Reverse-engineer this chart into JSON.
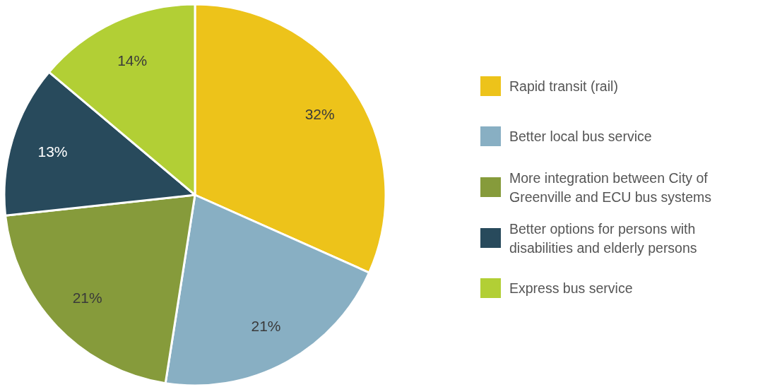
{
  "chart_data": {
    "type": "pie",
    "categories": [
      "Rapid transit (rail)",
      "Better local bus service",
      "More integration between City of Greenville and ECU bus systems",
      "Better options for persons with disabilities and elderly persons",
      "Express bus service"
    ],
    "values": [
      32,
      21,
      21,
      13,
      14
    ],
    "value_labels": [
      "32%",
      "21%",
      "21%",
      "13%",
      "14%"
    ],
    "colors": [
      "#edc31a",
      "#88afc3",
      "#869b3b",
      "#284a5c",
      "#b2cf35"
    ],
    "legend": "right"
  }
}
